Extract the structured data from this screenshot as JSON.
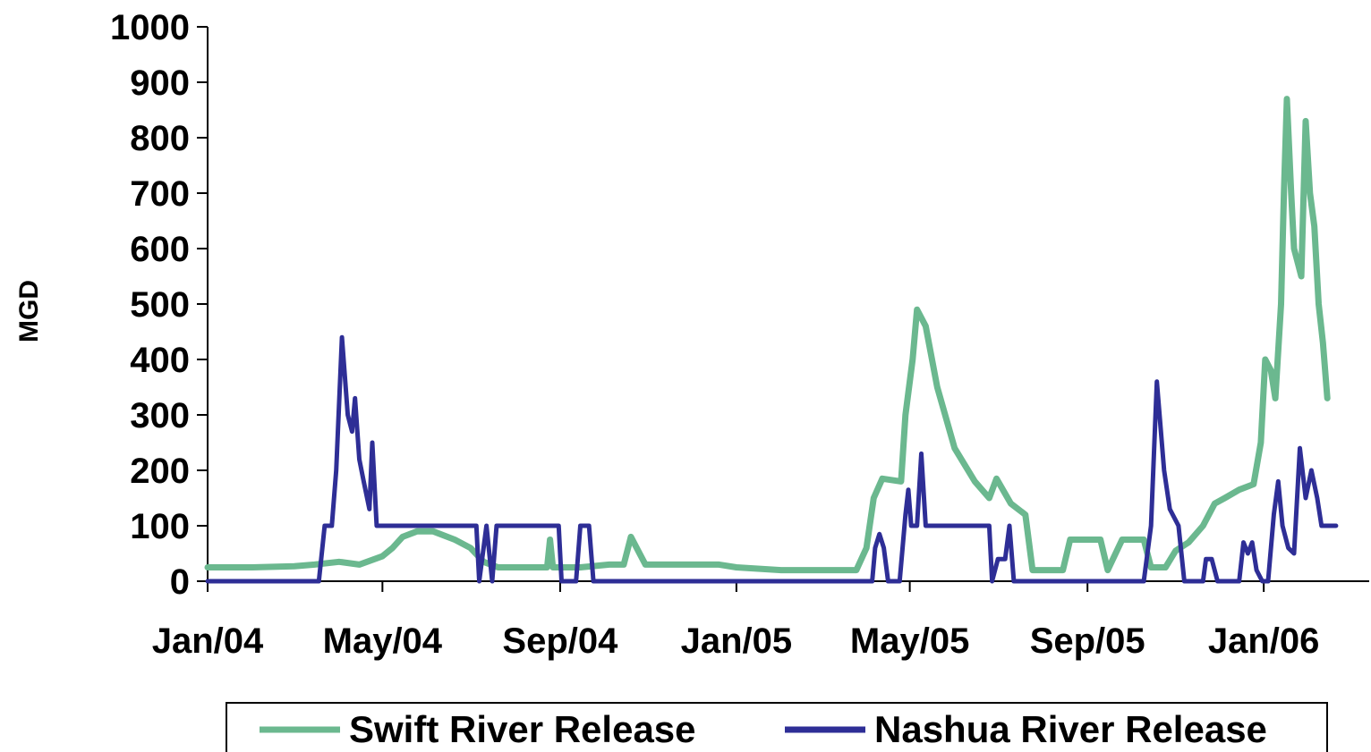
{
  "chart_data": {
    "type": "line",
    "title": "",
    "xlabel": "",
    "ylabel": "MGD",
    "ylim": [
      0,
      1000
    ],
    "yticks": [
      0,
      100,
      200,
      300,
      400,
      500,
      600,
      700,
      800,
      900,
      1000
    ],
    "xlim": [
      "2004-01-01",
      "2006-03-15"
    ],
    "xticks": [
      {
        "label": "Jan/04",
        "date": "2004-01-01"
      },
      {
        "label": "May/04",
        "date": "2004-05-01"
      },
      {
        "label": "Sep/04",
        "date": "2004-09-01"
      },
      {
        "label": "Jan/05",
        "date": "2005-01-01"
      },
      {
        "label": "May/05",
        "date": "2005-05-01"
      },
      {
        "label": "Sep/05",
        "date": "2005-09-01"
      },
      {
        "label": "Jan/06",
        "date": "2006-01-01"
      }
    ],
    "grid": false,
    "legend": "bottom",
    "series": [
      {
        "name": "Swift River Release",
        "color": "#6bb88f",
        "points": [
          [
            "2004-01-01",
            25
          ],
          [
            "2004-02-01",
            25
          ],
          [
            "2004-03-01",
            27
          ],
          [
            "2004-03-15",
            30
          ],
          [
            "2004-04-01",
            35
          ],
          [
            "2004-04-15",
            30
          ],
          [
            "2004-05-01",
            45
          ],
          [
            "2004-05-08",
            60
          ],
          [
            "2004-05-15",
            80
          ],
          [
            "2004-05-25",
            90
          ],
          [
            "2004-06-05",
            90
          ],
          [
            "2004-06-20",
            75
          ],
          [
            "2004-07-01",
            60
          ],
          [
            "2004-07-10",
            35
          ],
          [
            "2004-07-20",
            25
          ],
          [
            "2004-08-10",
            25
          ],
          [
            "2004-08-23",
            25
          ],
          [
            "2004-08-25",
            75
          ],
          [
            "2004-08-27",
            25
          ],
          [
            "2004-09-15",
            25
          ],
          [
            "2004-10-05",
            30
          ],
          [
            "2004-10-15",
            30
          ],
          [
            "2004-10-20",
            80
          ],
          [
            "2004-10-26",
            50
          ],
          [
            "2004-10-30",
            30
          ],
          [
            "2004-11-15",
            30
          ],
          [
            "2004-12-20",
            30
          ],
          [
            "2005-01-01",
            25
          ],
          [
            "2005-02-01",
            20
          ],
          [
            "2005-03-01",
            20
          ],
          [
            "2005-03-25",
            20
          ],
          [
            "2005-04-01",
            60
          ],
          [
            "2005-04-06",
            150
          ],
          [
            "2005-04-12",
            185
          ],
          [
            "2005-04-25",
            180
          ],
          [
            "2005-04-28",
            300
          ],
          [
            "2005-05-03",
            400
          ],
          [
            "2005-05-06",
            490
          ],
          [
            "2005-05-12",
            460
          ],
          [
            "2005-05-20",
            350
          ],
          [
            "2005-06-01",
            240
          ],
          [
            "2005-06-15",
            180
          ],
          [
            "2005-06-25",
            150
          ],
          [
            "2005-06-30",
            185
          ],
          [
            "2005-07-10",
            140
          ],
          [
            "2005-07-20",
            120
          ],
          [
            "2005-07-25",
            20
          ],
          [
            "2005-08-05",
            20
          ],
          [
            "2005-08-15",
            20
          ],
          [
            "2005-08-20",
            75
          ],
          [
            "2005-09-10",
            75
          ],
          [
            "2005-09-15",
            20
          ],
          [
            "2005-09-25",
            75
          ],
          [
            "2005-10-10",
            75
          ],
          [
            "2005-10-15",
            25
          ],
          [
            "2005-10-25",
            25
          ],
          [
            "2005-11-01",
            55
          ],
          [
            "2005-11-10",
            70
          ],
          [
            "2005-11-20",
            100
          ],
          [
            "2005-11-28",
            140
          ],
          [
            "2005-12-05",
            150
          ],
          [
            "2005-12-15",
            165
          ],
          [
            "2005-12-25",
            175
          ],
          [
            "2005-12-30",
            250
          ],
          [
            "2006-01-02",
            400
          ],
          [
            "2006-01-06",
            380
          ],
          [
            "2006-01-09",
            330
          ],
          [
            "2006-01-13",
            500
          ],
          [
            "2006-01-15",
            700
          ],
          [
            "2006-01-17",
            870
          ],
          [
            "2006-01-20",
            700
          ],
          [
            "2006-01-22",
            600
          ],
          [
            "2006-01-25",
            570
          ],
          [
            "2006-01-27",
            550
          ],
          [
            "2006-01-30",
            830
          ],
          [
            "2006-02-02",
            700
          ],
          [
            "2006-02-05",
            640
          ],
          [
            "2006-02-08",
            500
          ],
          [
            "2006-02-11",
            430
          ],
          [
            "2006-02-14",
            330
          ]
        ]
      },
      {
        "name": "Nashua River Release",
        "color": "#2e2e96",
        "points": [
          [
            "2004-01-01",
            0
          ],
          [
            "2004-03-18",
            0
          ],
          [
            "2004-03-22",
            100
          ],
          [
            "2004-03-27",
            100
          ],
          [
            "2004-03-30",
            200
          ],
          [
            "2004-04-03",
            440
          ],
          [
            "2004-04-07",
            300
          ],
          [
            "2004-04-10",
            270
          ],
          [
            "2004-04-12",
            330
          ],
          [
            "2004-04-15",
            220
          ],
          [
            "2004-04-18",
            180
          ],
          [
            "2004-04-22",
            130
          ],
          [
            "2004-04-24",
            250
          ],
          [
            "2004-04-27",
            100
          ],
          [
            "2004-07-05",
            100
          ],
          [
            "2004-07-07",
            0
          ],
          [
            "2004-07-12",
            100
          ],
          [
            "2004-07-16",
            0
          ],
          [
            "2004-07-19",
            100
          ],
          [
            "2004-08-31",
            100
          ],
          [
            "2004-09-02",
            0
          ],
          [
            "2004-09-12",
            0
          ],
          [
            "2004-09-15",
            100
          ],
          [
            "2004-09-21",
            100
          ],
          [
            "2004-09-24",
            0
          ],
          [
            "2005-04-05",
            0
          ],
          [
            "2005-04-07",
            60
          ],
          [
            "2005-04-10",
            85
          ],
          [
            "2005-04-13",
            60
          ],
          [
            "2005-04-16",
            0
          ],
          [
            "2005-04-24",
            0
          ],
          [
            "2005-04-28",
            120
          ],
          [
            "2005-04-30",
            165
          ],
          [
            "2005-05-02",
            100
          ],
          [
            "2005-05-06",
            100
          ],
          [
            "2005-05-09",
            230
          ],
          [
            "2005-05-12",
            100
          ],
          [
            "2005-06-25",
            100
          ],
          [
            "2005-06-27",
            0
          ],
          [
            "2005-07-01",
            40
          ],
          [
            "2005-07-06",
            40
          ],
          [
            "2005-07-09",
            100
          ],
          [
            "2005-07-12",
            0
          ],
          [
            "2005-10-10",
            0
          ],
          [
            "2005-10-15",
            100
          ],
          [
            "2005-10-19",
            360
          ],
          [
            "2005-10-24",
            200
          ],
          [
            "2005-10-28",
            130
          ],
          [
            "2005-11-03",
            100
          ],
          [
            "2005-11-07",
            0
          ],
          [
            "2005-11-20",
            0
          ],
          [
            "2005-11-22",
            40
          ],
          [
            "2005-11-26",
            40
          ],
          [
            "2005-11-30",
            0
          ],
          [
            "2005-12-15",
            0
          ],
          [
            "2005-12-18",
            70
          ],
          [
            "2005-12-21",
            50
          ],
          [
            "2005-12-24",
            70
          ],
          [
            "2005-12-27",
            20
          ],
          [
            "2005-12-31",
            0
          ],
          [
            "2006-01-04",
            0
          ],
          [
            "2006-01-08",
            120
          ],
          [
            "2006-01-11",
            180
          ],
          [
            "2006-01-14",
            100
          ],
          [
            "2006-01-18",
            60
          ],
          [
            "2006-01-22",
            50
          ],
          [
            "2006-01-26",
            240
          ],
          [
            "2006-01-30",
            150
          ],
          [
            "2006-02-03",
            200
          ],
          [
            "2006-02-07",
            150
          ],
          [
            "2006-02-10",
            100
          ],
          [
            "2006-02-20",
            100
          ]
        ]
      }
    ]
  }
}
